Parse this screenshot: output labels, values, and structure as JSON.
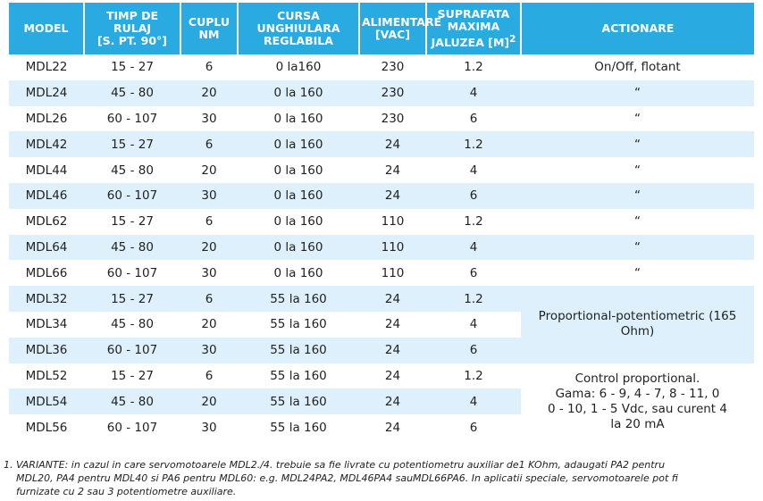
{
  "headers": {
    "model": "MODEL",
    "time_l1": "TIMP DE RULAJ",
    "time_l2": "[s. PT. 90°]",
    "torque_l1": "CUPLU",
    "torque_l2": "Nm",
    "stroke_l1": "CURSA",
    "stroke_l2": "UNGHIULARA",
    "stroke_l3": "REGLABILA",
    "supply_l1": "ALIMENTARE",
    "supply_l2": "[Vac]",
    "area_l1": "SUPRAFATA",
    "area_l2": "MAXIMA",
    "area_l3": "JALUZEA [m]",
    "area_sup": "2",
    "actuation": "ACTIONARE"
  },
  "rows": [
    {
      "model": "MDL22",
      "time": "15 - 27",
      "torque": "6",
      "stroke": "0 la160",
      "supply": "230",
      "area": "1.2"
    },
    {
      "model": "MDL24",
      "time": "45 - 80",
      "torque": "20",
      "stroke": "0 la 160",
      "supply": "230",
      "area": "4"
    },
    {
      "model": "MDL26",
      "time": "60 - 107",
      "torque": "30",
      "stroke": "0 la 160",
      "supply": "230",
      "area": "6"
    },
    {
      "model": "MDL42",
      "time": "15 - 27",
      "torque": "6",
      "stroke": "0 la 160",
      "supply": "24",
      "area": "1.2"
    },
    {
      "model": "MDL44",
      "time": "45 - 80",
      "torque": "20",
      "stroke": "0 la 160",
      "supply": "24",
      "area": "4"
    },
    {
      "model": "MDL46",
      "time": "60 - 107",
      "torque": "30",
      "stroke": "0 la 160",
      "supply": "24",
      "area": "6"
    },
    {
      "model": "MDL62",
      "time": "15 - 27",
      "torque": "6",
      "stroke": "0 la 160",
      "supply": "110",
      "area": "1.2"
    },
    {
      "model": "MDL64",
      "time": "45 - 80",
      "torque": "20",
      "stroke": "0 la 160",
      "supply": "110",
      "area": "4"
    },
    {
      "model": "MDL66",
      "time": "60 - 107",
      "torque": "30",
      "stroke": "0 la 160",
      "supply": "110",
      "area": "6"
    },
    {
      "model": "MDL32",
      "time": "15 - 27",
      "torque": "6",
      "stroke": "55 la 160",
      "supply": "24",
      "area": "1.2"
    },
    {
      "model": "MDL34",
      "time": "45 - 80",
      "torque": "20",
      "stroke": "55 la 160",
      "supply": "24",
      "area": "4"
    },
    {
      "model": "MDL36",
      "time": "60 - 107",
      "torque": "30",
      "stroke": "55 la 160",
      "supply": "24",
      "area": "6"
    },
    {
      "model": "MDL52",
      "time": "15 - 27",
      "torque": "6",
      "stroke": "55 la 160",
      "supply": "24",
      "area": "1.2"
    },
    {
      "model": "MDL54",
      "time": "45 - 80",
      "torque": "20",
      "stroke": "55 la 160",
      "supply": "24",
      "area": "4"
    },
    {
      "model": "MDL56",
      "time": "60 - 107",
      "torque": "30",
      "stroke": "55 la 160",
      "supply": "24",
      "area": "6"
    }
  ],
  "actuation": {
    "onoff": "On/Off, flotant",
    "ditto": "“",
    "potentiometric": "Proportional-potentiometric (165 Ohm)",
    "control_l1": "Control proportional.",
    "control_l2": "Gama: 6 - 9, 4 - 7, 8 - 11, 0",
    "control_l3": "0 - 10, 1 - 5 Vdc, sau curent 4",
    "control_l4": "la 20 mA"
  },
  "footnote": {
    "line1": "1. VARIANTE: in cazul in care servomotoarele MDL2./4. trebuie sa fie livrate cu potentiometru auxiliar de1 KOhm, adaugati PA2 pentru",
    "line2": "MDL20, PA4 pentru MDL40 si PA6 pentru MDL60: e.g. MDL24PA2, MDL46PA4 sauMDL66PA6. In aplicatii speciale, servomotoarele pot fi",
    "line3": "furnizate cu 2 sau 3 potentiometre auxiliare."
  }
}
